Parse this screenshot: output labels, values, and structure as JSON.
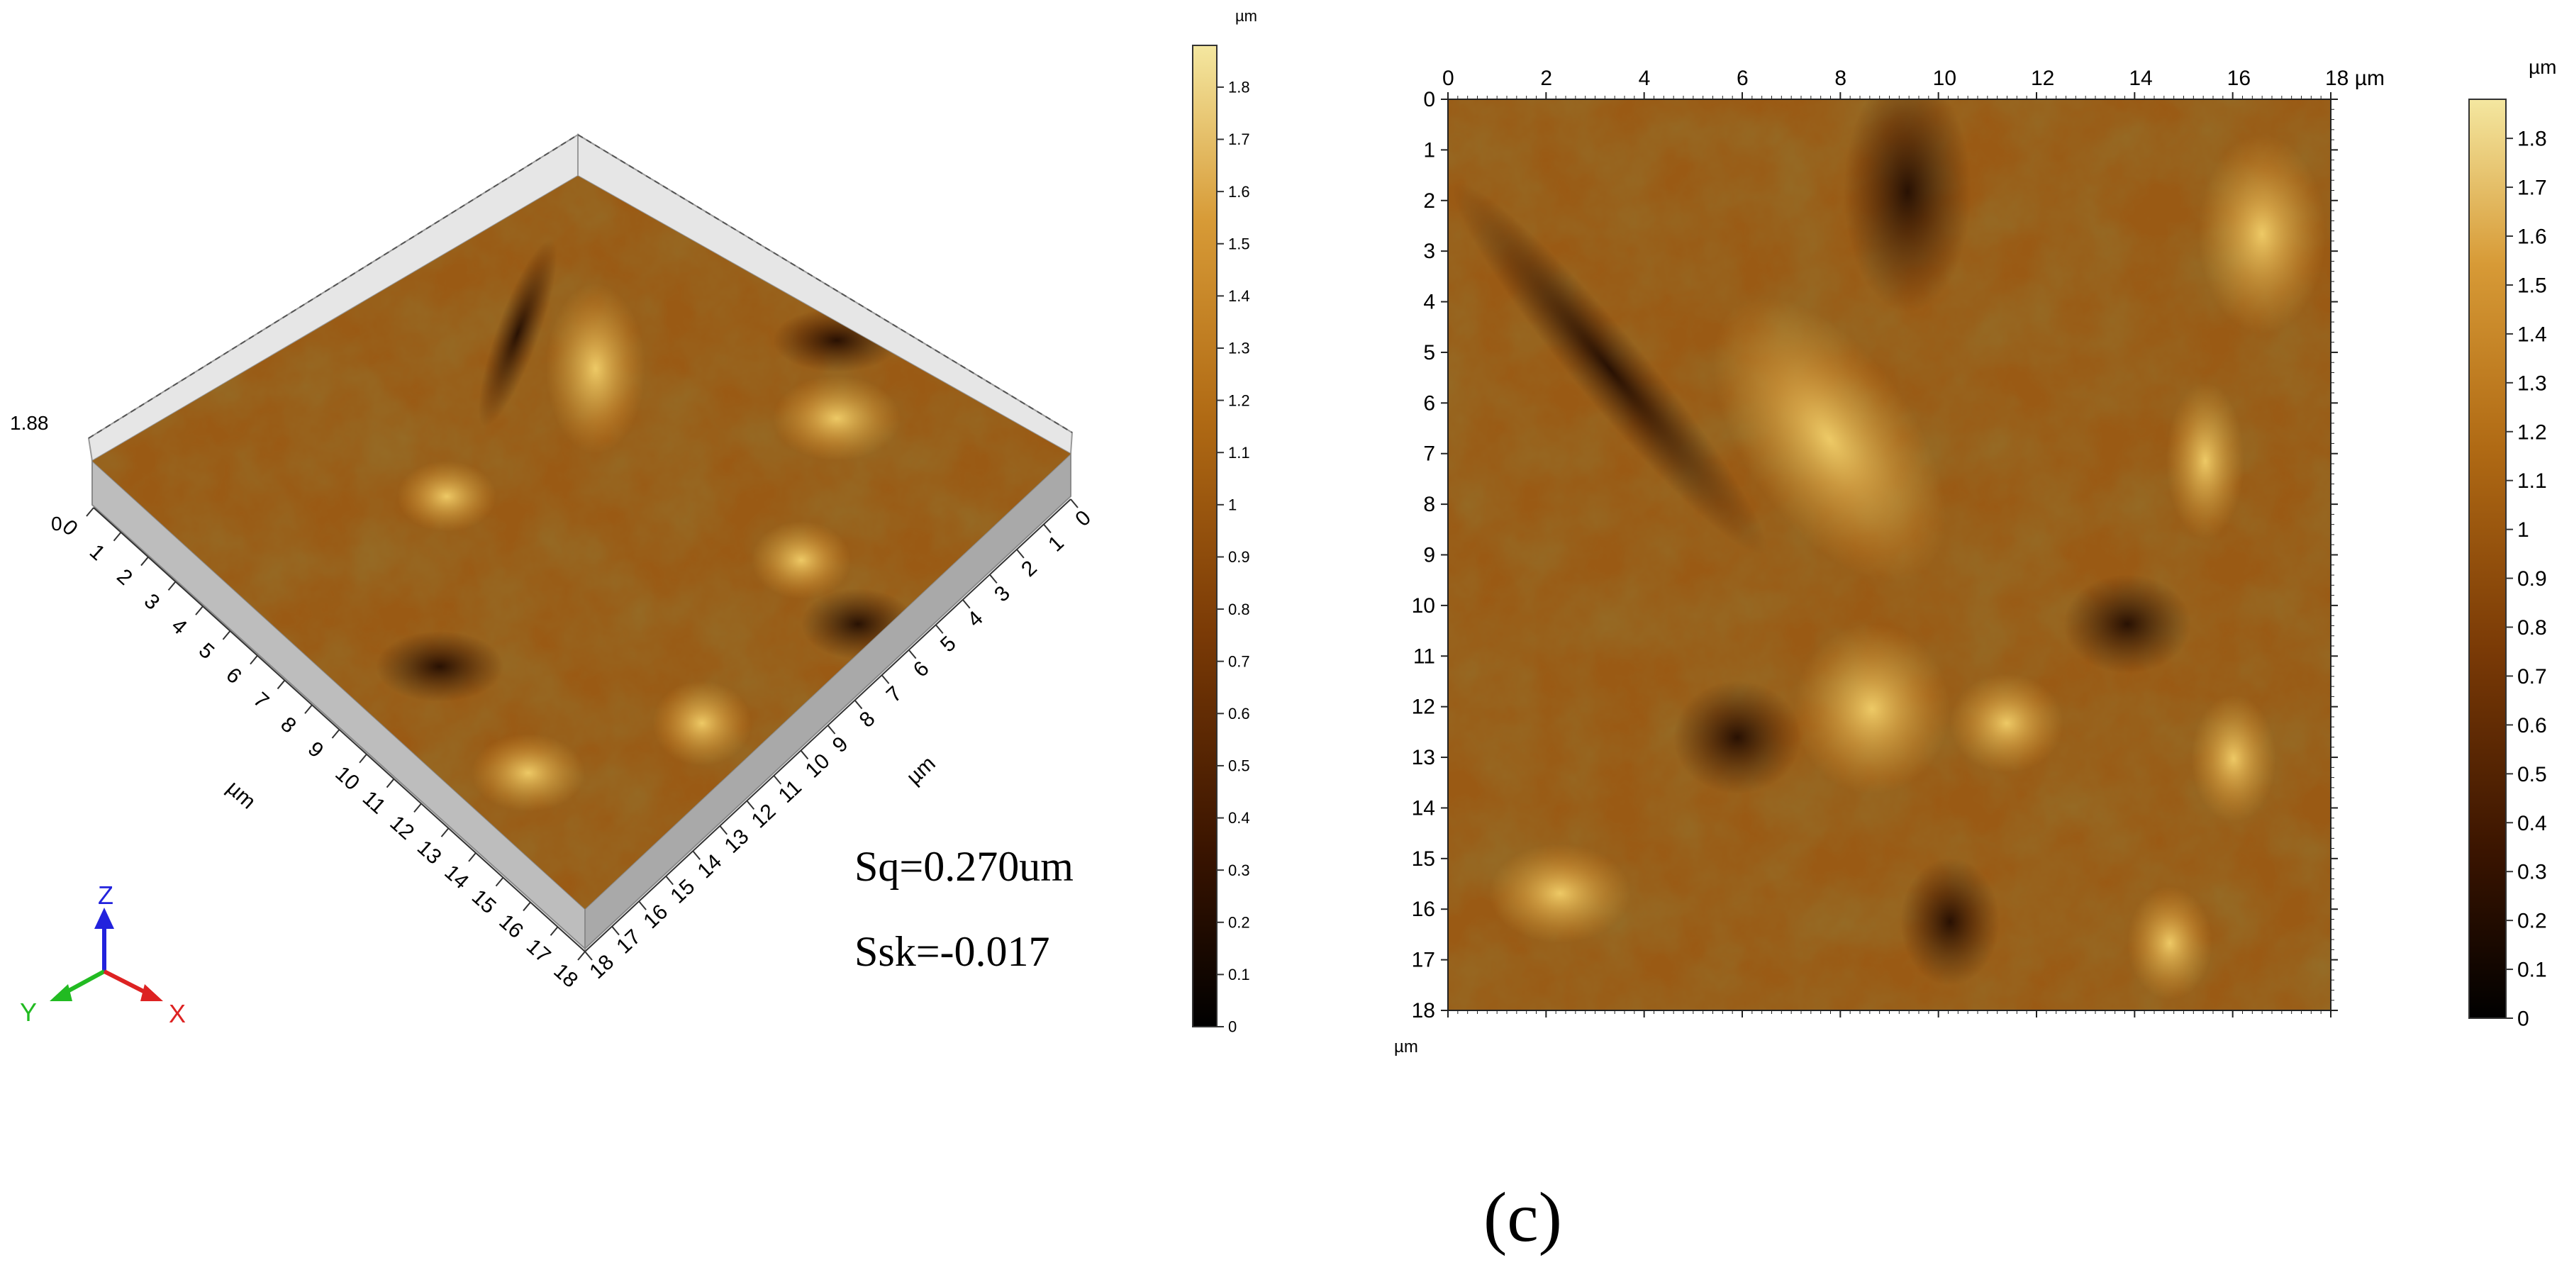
{
  "figure_label": "(c)",
  "panel_3d": {
    "z_labels": [
      "1.88",
      "0"
    ],
    "left_axis_ticks": [
      "0",
      "1",
      "2",
      "3",
      "4",
      "5",
      "6",
      "7",
      "8",
      "9",
      "10",
      "11",
      "12",
      "13",
      "14",
      "15",
      "16",
      "17",
      "18"
    ],
    "right_axis_ticks": [
      "18",
      "17",
      "16",
      "15",
      "14",
      "13",
      "12",
      "11",
      "10",
      "9",
      "8",
      "7",
      "6",
      "5",
      "4",
      "3",
      "2",
      "1",
      "0"
    ],
    "left_axis_unit": "µm",
    "right_axis_unit": "µm",
    "stats": {
      "sq": "Sq=0.270um",
      "ssk": "Ssk=-0.017"
    },
    "triad": {
      "z": "Z",
      "y": "Y",
      "x": "X"
    },
    "colorbar": {
      "unit": "µm",
      "range": [
        0,
        1.88
      ],
      "ticks": [
        "1.8",
        "1.7",
        "1.6",
        "1.5",
        "1.4",
        "1.3",
        "1.2",
        "1.1",
        "1",
        "0.9",
        "0.8",
        "0.7",
        "0.6",
        "0.5",
        "0.4",
        "0.3",
        "0.2",
        "0.1",
        "0"
      ]
    }
  },
  "panel_2d": {
    "x_ticks": [
      "0",
      "2",
      "4",
      "6",
      "8",
      "10",
      "12",
      "14",
      "16",
      "18 µm"
    ],
    "y_ticks": [
      "0",
      "1",
      "2",
      "3",
      "4",
      "5",
      "6",
      "7",
      "8",
      "9",
      "10",
      "11",
      "12",
      "13",
      "14",
      "15",
      "16",
      "17",
      "18"
    ],
    "y_unit": "µm",
    "range_um": [
      0,
      18
    ],
    "colorbar": {
      "unit": "µm",
      "range": [
        0,
        1.88
      ],
      "ticks": [
        "1.8",
        "1.7",
        "1.6",
        "1.5",
        "1.4",
        "1.3",
        "1.2",
        "1.1",
        "1",
        "0.9",
        "0.8",
        "0.7",
        "0.6",
        "0.5",
        "0.4",
        "0.3",
        "0.2",
        "0.1",
        "0"
      ]
    }
  },
  "colormap": [
    "#000000",
    "#3a1400",
    "#7a3a06",
    "#b06a14",
    "#d79a36",
    "#f4d884"
  ]
}
